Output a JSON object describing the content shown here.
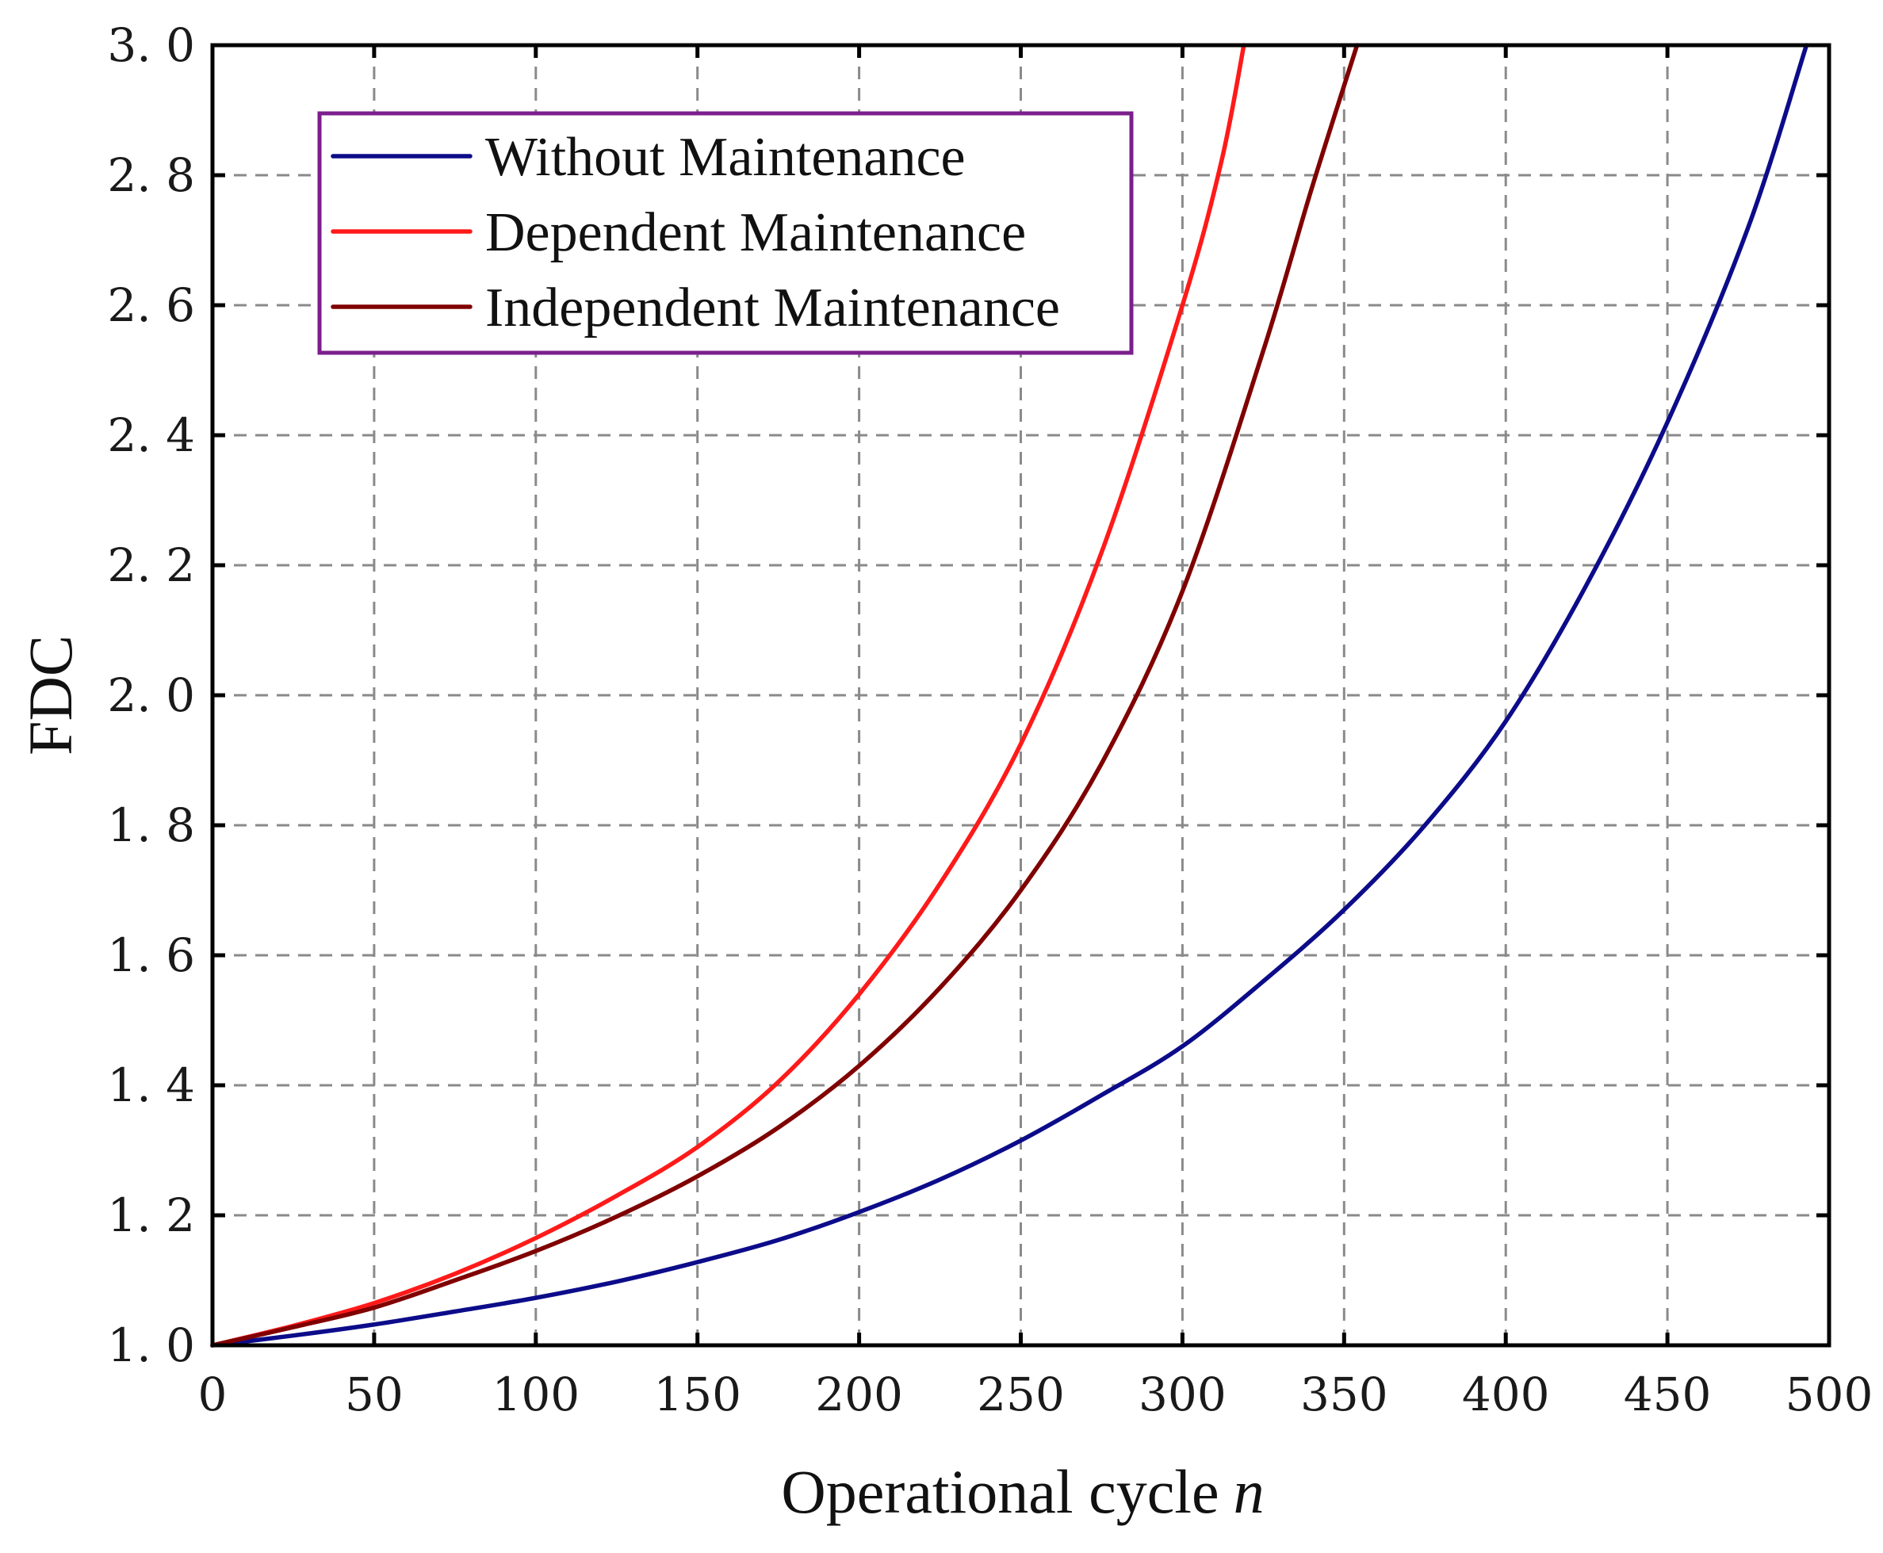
{
  "chart_data": {
    "type": "line",
    "title": "",
    "xlabel": "Operational cycle",
    "xlabel_var": "n",
    "ylabel": "FDC",
    "xlim": [
      0,
      500
    ],
    "ylim": [
      1.0,
      3.0
    ],
    "xticks": [
      0,
      50,
      100,
      150,
      200,
      250,
      300,
      350,
      400,
      450,
      500
    ],
    "xtick_labels": [
      "0",
      "50",
      "100",
      "150",
      "200",
      "250",
      "300",
      "350",
      "400",
      "450",
      "500"
    ],
    "yticks": [
      1.0,
      1.2,
      1.4,
      1.6,
      1.8,
      2.0,
      2.2,
      2.4,
      2.6,
      2.8,
      3.0
    ],
    "ytick_labels": [
      "1. 0",
      "1. 2",
      "1. 4",
      "1. 6",
      "1. 8",
      "2. 0",
      "2. 2",
      "2. 4",
      "2. 6",
      "2. 8",
      "3. 0"
    ],
    "grid": true,
    "legend_position": "top-left",
    "legend_border_color": "#7b1f8c",
    "series": [
      {
        "name": "Without Maintenance",
        "color": "#0c0c8a",
        "x": [
          0,
          25,
          50,
          75,
          100,
          125,
          150,
          175,
          200,
          225,
          250,
          275,
          300,
          325,
          350,
          375,
          400,
          425,
          450,
          475,
          493
        ],
        "y": [
          1.0,
          1.015,
          1.032,
          1.052,
          1.073,
          1.098,
          1.128,
          1.162,
          1.205,
          1.255,
          1.315,
          1.385,
          1.46,
          1.56,
          1.67,
          1.8,
          1.96,
          2.17,
          2.42,
          2.72,
          3.0
        ]
      },
      {
        "name": "Dependent Maintenance",
        "color": "#ff1a1a",
        "x": [
          0,
          25,
          50,
          75,
          100,
          125,
          150,
          175,
          200,
          225,
          250,
          275,
          300,
          312,
          319
        ],
        "y": [
          1.0,
          1.03,
          1.065,
          1.11,
          1.165,
          1.23,
          1.305,
          1.405,
          1.54,
          1.71,
          1.925,
          2.22,
          2.6,
          2.82,
          3.0
        ]
      },
      {
        "name": "Independent Maintenance",
        "color": "#800000",
        "x": [
          0,
          25,
          50,
          75,
          100,
          125,
          150,
          175,
          200,
          225,
          250,
          275,
          300,
          325,
          340,
          354
        ],
        "y": [
          1.0,
          1.028,
          1.058,
          1.1,
          1.145,
          1.198,
          1.26,
          1.335,
          1.43,
          1.55,
          1.7,
          1.895,
          2.16,
          2.53,
          2.78,
          3.0
        ]
      }
    ]
  }
}
